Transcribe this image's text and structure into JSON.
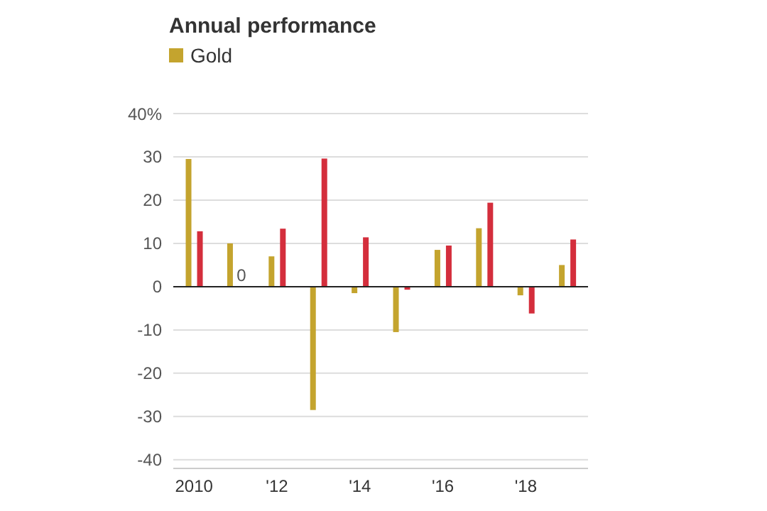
{
  "chart_data": {
    "type": "bar",
    "title": "Annual performance",
    "categories": [
      "2010",
      null,
      "'12",
      null,
      "'14",
      null,
      "'16",
      null,
      "'18",
      null
    ],
    "series": [
      {
        "name": "Gold",
        "color": "#c4a42e",
        "values": [
          29.5,
          10,
          7,
          -28.5,
          -1.5,
          -10.5,
          8.5,
          13.5,
          -2,
          5
        ]
      },
      {
        "color": "#d42e3c",
        "values": [
          12.8,
          0,
          13.4,
          29.6,
          11.4,
          -0.7,
          9.5,
          19.4,
          -6.2,
          10.9
        ],
        "value_labels": [
          null,
          "0",
          null,
          null,
          null,
          null,
          null,
          null,
          null,
          null
        ]
      }
    ],
    "ylim": [
      -42,
      40
    ],
    "yticks": [
      {
        "value": 40,
        "label": "40%"
      },
      30,
      20,
      10,
      0,
      -10,
      -20,
      -30,
      -40
    ],
    "ref_lines": [
      {
        "axis": "y",
        "value": 0,
        "color": "#222222"
      }
    ],
    "grid": "y",
    "legend": "top left"
  }
}
